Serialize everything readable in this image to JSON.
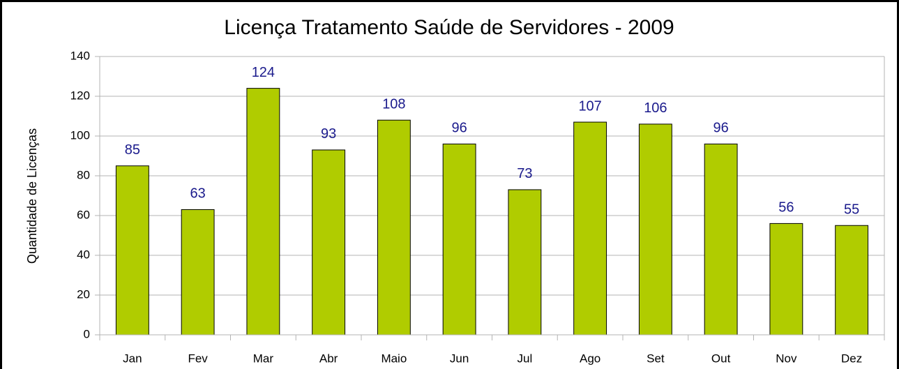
{
  "chart_data": {
    "type": "bar",
    "title": "Licença Tratamento Saúde de Servidores - 2009",
    "y_axis_label": "Quantidade de Licenças",
    "categories": [
      "Jan",
      "Fev",
      "Mar",
      "Abr",
      "Maio",
      "Jun",
      "Jul",
      "Ago",
      "Set",
      "Out",
      "Nov",
      "Dez"
    ],
    "values": [
      85,
      63,
      124,
      93,
      108,
      96,
      73,
      107,
      106,
      96,
      56,
      55
    ],
    "color": "#b0cc00",
    "label_color": "#1a1a8c",
    "ylim": [
      0,
      140
    ],
    "yticks": [
      0,
      20,
      40,
      60,
      80,
      100,
      120,
      140
    ],
    "grid": true
  }
}
